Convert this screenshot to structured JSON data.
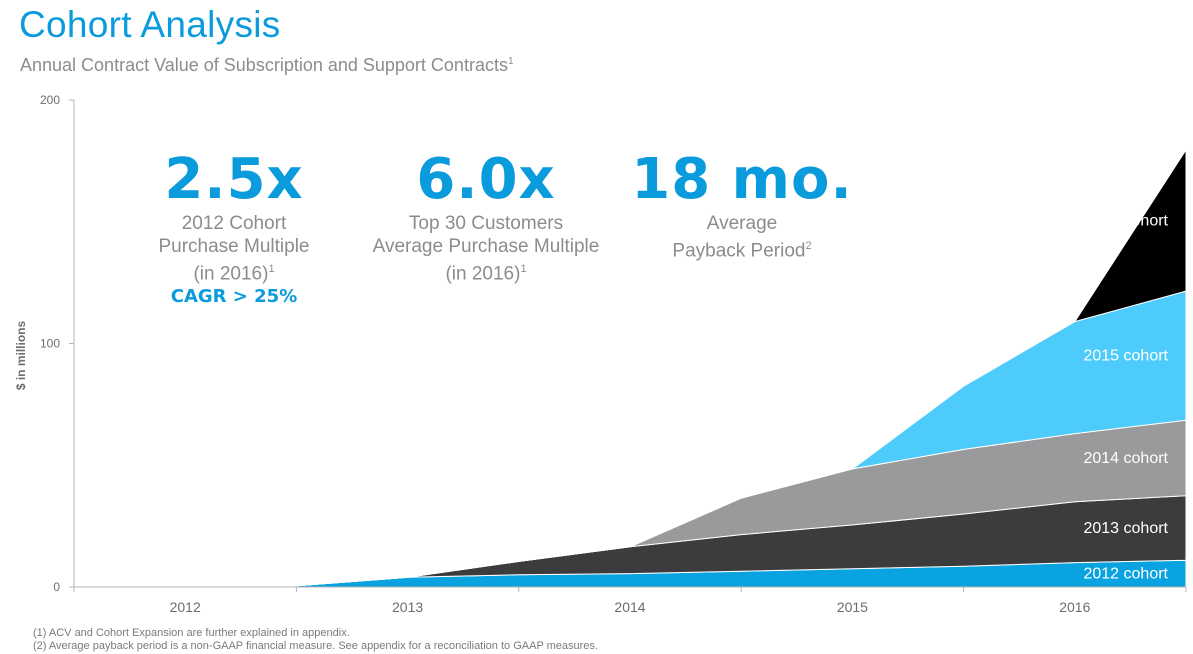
{
  "header": {
    "title": "Cohort Analysis",
    "subtitle": "Annual Contract Value of Subscription and Support Contracts",
    "subtitle_note": "1"
  },
  "stats": [
    {
      "value": "2.5x",
      "line1": "2012 Cohort",
      "line2": "Purchase Multiple",
      "line3": "(in 2016)",
      "line3_note": "1",
      "highlight": "CAGR > 25%"
    },
    {
      "value": "6.0x",
      "line1": "Top 30 Customers",
      "line2": "Average Purchase Multiple",
      "line3": "(in 2016)",
      "line3_note": "1"
    },
    {
      "value": "18 mo.",
      "line1": "Average",
      "line2": "Payback Period",
      "line2_note": "2"
    }
  ],
  "footnotes": [
    "(1) ACV and Cohort Expansion are further explained in appendix.",
    "(2) Average payback period is a non-GAAP financial measure.  See appendix for a reconciliation to GAAP measures."
  ],
  "colors": {
    "accent": "#0a9bdc",
    "c2012": "#08a3e0",
    "c2013": "#3c3c3e",
    "c2014": "#9a999b",
    "c2015": "#4dcbfb",
    "c2016": "#000000"
  },
  "chart_data": {
    "type": "area",
    "stacked": true,
    "ylabel": "$ in millions",
    "ylim": [
      0,
      200
    ],
    "yticks": [
      0,
      100,
      200
    ],
    "x": [
      2012,
      2012.5,
      2013,
      2013.5,
      2014,
      2014.5,
      2015,
      2015.5,
      2016,
      2016.5
    ],
    "xticks": [
      "2012",
      "2013",
      "2014",
      "2015",
      "2016"
    ],
    "series": [
      {
        "name": "2012 cohort",
        "values": [
          0,
          0.5,
          4,
          5,
          5.5,
          6.5,
          7.5,
          8.5,
          10,
          11
        ]
      },
      {
        "name": "2013 cohort",
        "values": [
          0,
          0,
          0,
          5.5,
          11,
          15,
          18,
          21.5,
          25,
          26.5
        ]
      },
      {
        "name": "2014 cohort",
        "values": [
          0,
          0,
          0,
          0,
          0,
          15,
          23,
          26.5,
          28,
          31
        ]
      },
      {
        "name": "2015 cohort",
        "values": [
          0,
          0,
          0,
          0,
          0,
          0,
          0,
          26,
          46,
          53
        ]
      },
      {
        "name": "2016 cohort",
        "values": [
          0,
          0,
          0,
          0,
          0,
          0,
          0,
          0,
          0,
          58
        ]
      }
    ],
    "series_labels": [
      "2016 cohort",
      "2015 cohort",
      "2014 cohort",
      "2013 cohort",
      "2012 cohort"
    ]
  }
}
